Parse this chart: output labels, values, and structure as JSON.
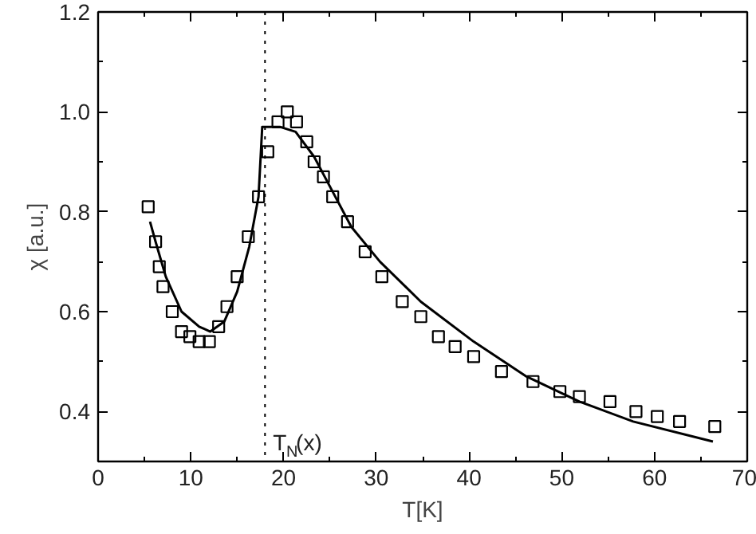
{
  "chart_data": {
    "type": "scatter",
    "xlabel": "T[K]",
    "ylabel": "χ [a.u.]",
    "xlim": [
      0,
      70
    ],
    "ylim": [
      0.3,
      1.2
    ],
    "xticks": [
      0,
      10,
      20,
      30,
      40,
      50,
      60,
      70
    ],
    "yticks": [
      0.4,
      0.6,
      0.8,
      {
        "value": 1,
        "label": "1.0"
      },
      1.2
    ],
    "grid": false,
    "series": [
      {
        "color": "#000000",
        "marker": "square",
        "x": [
          5.4,
          6.2,
          6.6,
          7.0,
          8.0,
          9.0,
          9.9,
          10.9,
          12.0,
          13.0,
          13.9,
          15.0,
          16.2,
          17.3,
          18.3,
          19.4,
          20.4,
          21.4,
          22.5,
          23.3,
          24.3,
          25.3,
          26.9,
          28.8,
          30.6,
          32.8,
          34.8,
          36.7,
          38.5,
          40.5,
          43.5,
          46.9,
          49.8,
          51.9,
          55.2,
          58.0,
          60.3,
          62.7,
          66.5
        ],
        "values": [
          0.81,
          0.74,
          0.69,
          0.65,
          0.6,
          0.56,
          0.55,
          0.54,
          0.54,
          0.57,
          0.61,
          0.67,
          0.75,
          0.83,
          0.92,
          0.98,
          1.0,
          0.98,
          0.94,
          0.9,
          0.87,
          0.83,
          0.78,
          0.72,
          0.67,
          0.62,
          0.59,
          0.55,
          0.53,
          0.51,
          0.48,
          0.46,
          0.44,
          0.43,
          0.42,
          0.4,
          0.39,
          0.38,
          0.37
        ]
      },
      {
        "type": "line",
        "color": "#000000",
        "line_style": "solid",
        "x": [
          5.6,
          6.2,
          7.3,
          9.0,
          10.9,
          12.1,
          13.6,
          15.0,
          16.3,
          17.3,
          17.7,
          18.2,
          19.6,
          21.3,
          23.3,
          25.3,
          27.3,
          30.4,
          34.8,
          40.5,
          46.2,
          51.9,
          57.7,
          66.3
        ],
        "values": [
          0.78,
          0.74,
          0.67,
          0.6,
          0.57,
          0.56,
          0.58,
          0.64,
          0.73,
          0.83,
          0.97,
          0.97,
          0.97,
          0.96,
          0.91,
          0.84,
          0.77,
          0.7,
          0.62,
          0.54,
          0.47,
          0.42,
          0.38,
          0.34
        ]
      }
    ],
    "ref_lines": [
      {
        "axis": "x",
        "value": 18,
        "label": "T$_{N}$(x)",
        "color": "#000000",
        "line_style": "dotted"
      }
    ]
  }
}
